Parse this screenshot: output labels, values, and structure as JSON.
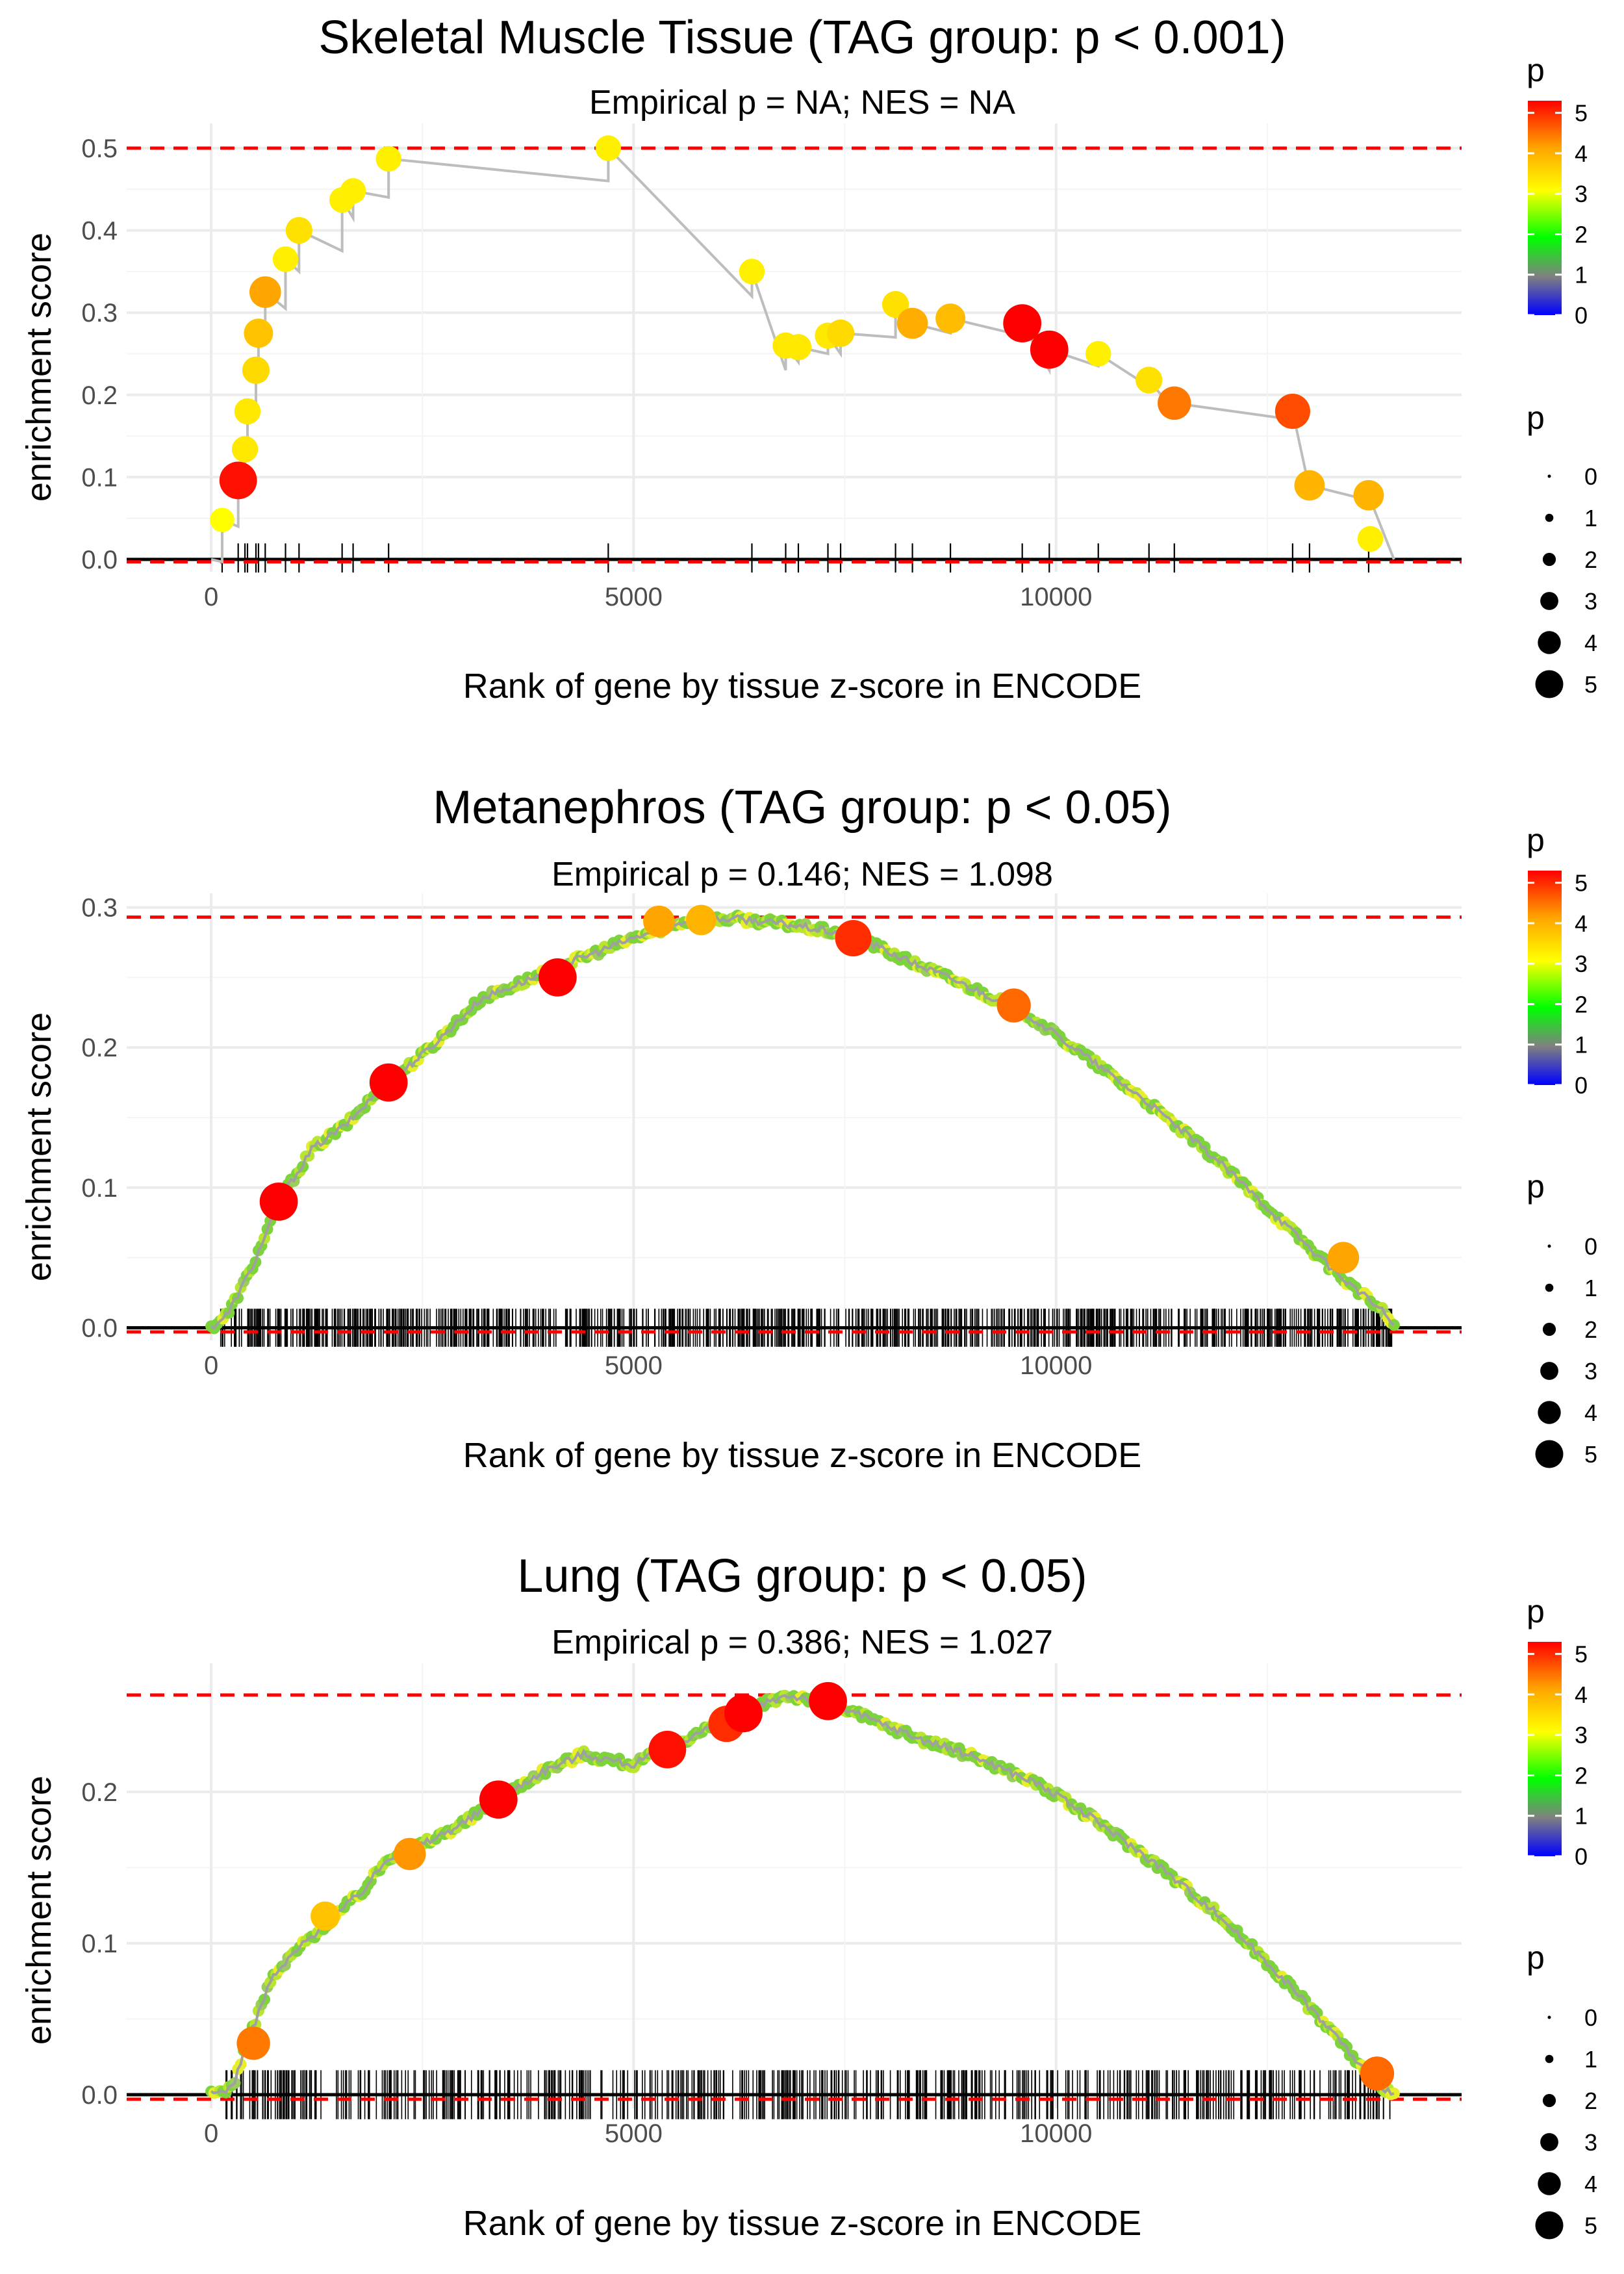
{
  "chart_data": [
    {
      "type": "line",
      "title": "Skeletal Muscle Tissue (TAG group: p < 0.001)",
      "subtitle": "Empirical p = NA; NES = NA",
      "xlabel": "Rank of gene by tissue z-score in ENCODE",
      "ylabel": "enrichment score",
      "xlim": [
        -1000,
        14800
      ],
      "ylim": [
        -0.015,
        0.53
      ],
      "x_ticks": [
        0,
        5000,
        10000
      ],
      "y_ticks": [
        0.0,
        0.1,
        0.2,
        0.3,
        0.4,
        0.5
      ],
      "y_tick_labels": [
        "0.0",
        "0.1",
        "0.2",
        "0.3",
        "0.4",
        "0.5"
      ],
      "max_es": 0.5,
      "min_es": -0.003,
      "curve_x": [
        0,
        130,
        130,
        320,
        320,
        400,
        400,
        430,
        430,
        530,
        530,
        560,
        560,
        640,
        640,
        880,
        880,
        1040,
        1040,
        1550,
        1550,
        1680,
        1680,
        2100,
        2100,
        4700,
        4700,
        6400,
        6400,
        6800,
        6800,
        6950,
        6950,
        7300,
        7300,
        7450,
        7450,
        8100,
        8100,
        8300,
        8300,
        8750,
        8750,
        9600,
        9600,
        9920,
        9920,
        10500,
        10500,
        11100,
        11100,
        11400,
        11400,
        12800,
        12800,
        13000,
        13000,
        13700,
        13700,
        14000
      ],
      "curve_y": [
        0.0,
        -0.003,
        0.048,
        0.04,
        0.096,
        0.09,
        0.134,
        0.132,
        0.18,
        0.175,
        0.23,
        0.228,
        0.275,
        0.27,
        0.325,
        0.305,
        0.365,
        0.35,
        0.4,
        0.375,
        0.437,
        0.415,
        0.448,
        0.44,
        0.487,
        0.46,
        0.5,
        0.32,
        0.35,
        0.23,
        0.26,
        0.24,
        0.258,
        0.25,
        0.272,
        0.25,
        0.275,
        0.27,
        0.31,
        0.27,
        0.287,
        0.275,
        0.293,
        0.272,
        0.287,
        0.23,
        0.255,
        0.235,
        0.25,
        0.21,
        0.218,
        0.18,
        0.19,
        0.17,
        0.18,
        0.085,
        0.09,
        0.072,
        0.078,
        0.0
      ],
      "points": [
        {
          "x": 130,
          "y": 0.048,
          "p": 3.0
        },
        {
          "x": 320,
          "y": 0.096,
          "p": 5.2
        },
        {
          "x": 400,
          "y": 0.134,
          "p": 3.3
        },
        {
          "x": 430,
          "y": 0.18,
          "p": 3.3
        },
        {
          "x": 530,
          "y": 0.23,
          "p": 3.5
        },
        {
          "x": 560,
          "y": 0.275,
          "p": 3.8
        },
        {
          "x": 640,
          "y": 0.325,
          "p": 4.2
        },
        {
          "x": 880,
          "y": 0.365,
          "p": 3.2
        },
        {
          "x": 1040,
          "y": 0.4,
          "p": 3.4
        },
        {
          "x": 1550,
          "y": 0.437,
          "p": 3.2
        },
        {
          "x": 1680,
          "y": 0.448,
          "p": 3.2
        },
        {
          "x": 2100,
          "y": 0.487,
          "p": 3.2
        },
        {
          "x": 4700,
          "y": 0.5,
          "p": 3.2
        },
        {
          "x": 6400,
          "y": 0.35,
          "p": 3.2
        },
        {
          "x": 6800,
          "y": 0.26,
          "p": 3.3
        },
        {
          "x": 6950,
          "y": 0.258,
          "p": 3.3
        },
        {
          "x": 7300,
          "y": 0.272,
          "p": 3.3
        },
        {
          "x": 7450,
          "y": 0.275,
          "p": 3.5
        },
        {
          "x": 8100,
          "y": 0.31,
          "p": 3.4
        },
        {
          "x": 8300,
          "y": 0.287,
          "p": 4.1
        },
        {
          "x": 8750,
          "y": 0.293,
          "p": 3.9
        },
        {
          "x": 9600,
          "y": 0.287,
          "p": 5.3
        },
        {
          "x": 9920,
          "y": 0.255,
          "p": 5.3
        },
        {
          "x": 10500,
          "y": 0.25,
          "p": 3.2
        },
        {
          "x": 11100,
          "y": 0.218,
          "p": 3.4
        },
        {
          "x": 11400,
          "y": 0.19,
          "p": 4.5
        },
        {
          "x": 12800,
          "y": 0.18,
          "p": 4.8
        },
        {
          "x": 13000,
          "y": 0.09,
          "p": 4.0
        },
        {
          "x": 13700,
          "y": 0.078,
          "p": 4.0
        },
        {
          "x": 13720,
          "y": 0.025,
          "p": 3.2
        }
      ],
      "rug_x": [
        130,
        320,
        400,
        430,
        530,
        560,
        640,
        880,
        1040,
        1550,
        1680,
        2100,
        4700,
        6400,
        6800,
        6950,
        7300,
        7450,
        8100,
        8300,
        8750,
        9600,
        9920,
        10500,
        11100,
        11400,
        12800,
        13000,
        13700
      ]
    },
    {
      "type": "line",
      "title": "Metanephros (TAG group: p < 0.05)",
      "subtitle": "Empirical p = 0.146; NES = 1.098",
      "xlabel": "Rank of gene by tissue z-score in ENCODE",
      "ylabel": "enrichment score",
      "xlim": [
        -1000,
        14800
      ],
      "ylim": [
        -0.009,
        0.31
      ],
      "x_ticks": [
        0,
        5000,
        10000
      ],
      "y_ticks": [
        0.0,
        0.1,
        0.2,
        0.3
      ],
      "y_tick_labels": [
        "0.0",
        "0.1",
        "0.2",
        "0.3"
      ],
      "max_es": 0.293,
      "min_es": -0.003,
      "curve_x": [
        0,
        200,
        500,
        800,
        1200,
        1600,
        2000,
        2600,
        3200,
        3700,
        4300,
        5000,
        5600,
        6200,
        6800,
        7600,
        8200,
        8800,
        9600,
        10300,
        11100,
        11900,
        12600,
        13300,
        13900,
        14000
      ],
      "curve_y": [
        0.0,
        0.01,
        0.045,
        0.09,
        0.128,
        0.145,
        0.17,
        0.2,
        0.235,
        0.247,
        0.262,
        0.278,
        0.29,
        0.292,
        0.288,
        0.28,
        0.263,
        0.248,
        0.226,
        0.196,
        0.16,
        0.12,
        0.08,
        0.04,
        0.01,
        0.0
      ],
      "points": [
        {
          "x": 800,
          "y": 0.09,
          "p": 5.3
        },
        {
          "x": 2100,
          "y": 0.175,
          "p": 5.3
        },
        {
          "x": 4100,
          "y": 0.25,
          "p": 5.3
        },
        {
          "x": 5300,
          "y": 0.29,
          "p": 4.2
        },
        {
          "x": 5800,
          "y": 0.291,
          "p": 4.0
        },
        {
          "x": 7600,
          "y": 0.278,
          "p": 5.0
        },
        {
          "x": 9500,
          "y": 0.23,
          "p": 4.6
        },
        {
          "x": 13400,
          "y": 0.05,
          "p": 4.2
        }
      ],
      "rug_range": [
        100,
        14000
      ],
      "rug_count": 900
    },
    {
      "type": "line",
      "title": "Lung (TAG group: p < 0.05)",
      "subtitle": "Empirical p = 0.386; NES = 1.027",
      "xlabel": "Rank of gene by tissue z-score in ENCODE",
      "ylabel": "enrichment score",
      "xlim": [
        -1000,
        14800
      ],
      "ylim": [
        -0.009,
        0.285
      ],
      "x_ticks": [
        0,
        5000,
        10000
      ],
      "y_ticks": [
        0.0,
        0.1,
        0.2
      ],
      "y_tick_labels": [
        "0.0",
        "0.1",
        "0.2"
      ],
      "max_es": 0.264,
      "min_es": -0.003,
      "curve_x": [
        0,
        250,
        400,
        700,
        1000,
        1400,
        1800,
        2100,
        2600,
        3000,
        3400,
        3900,
        4400,
        5000,
        5500,
        6000,
        6400,
        6800,
        7300,
        7800,
        8400,
        9100,
        9800,
        10500,
        11200,
        11900,
        12600,
        13300,
        13700,
        14000
      ],
      "curve_y": [
        0.0,
        0.005,
        0.03,
        0.075,
        0.095,
        0.115,
        0.135,
        0.157,
        0.168,
        0.18,
        0.195,
        0.213,
        0.225,
        0.218,
        0.232,
        0.245,
        0.255,
        0.264,
        0.26,
        0.248,
        0.235,
        0.222,
        0.205,
        0.18,
        0.152,
        0.12,
        0.082,
        0.04,
        0.012,
        0.0
      ],
      "points": [
        {
          "x": 500,
          "y": 0.034,
          "p": 4.5
        },
        {
          "x": 1350,
          "y": 0.118,
          "p": 3.8
        },
        {
          "x": 2350,
          "y": 0.159,
          "p": 4.3
        },
        {
          "x": 3400,
          "y": 0.195,
          "p": 5.3
        },
        {
          "x": 5400,
          "y": 0.228,
          "p": 5.2
        },
        {
          "x": 6100,
          "y": 0.245,
          "p": 5.0
        },
        {
          "x": 6300,
          "y": 0.252,
          "p": 5.3
        },
        {
          "x": 7300,
          "y": 0.26,
          "p": 5.3
        },
        {
          "x": 13800,
          "y": 0.014,
          "p": 4.6
        }
      ],
      "rug_range": [
        150,
        14000
      ],
      "rug_count": 550
    }
  ],
  "legend": {
    "color_title": "p",
    "color_ticks": [
      "5",
      "4",
      "3",
      "2",
      "1",
      "0"
    ],
    "size_title": "p",
    "size_labels": [
      "0",
      "1",
      "2",
      "3",
      "4",
      "5"
    ],
    "colors": [
      "#0000FF",
      "#808080",
      "#00FF00",
      "#FFFF00",
      "#FFA500",
      "#FF0000"
    ]
  }
}
